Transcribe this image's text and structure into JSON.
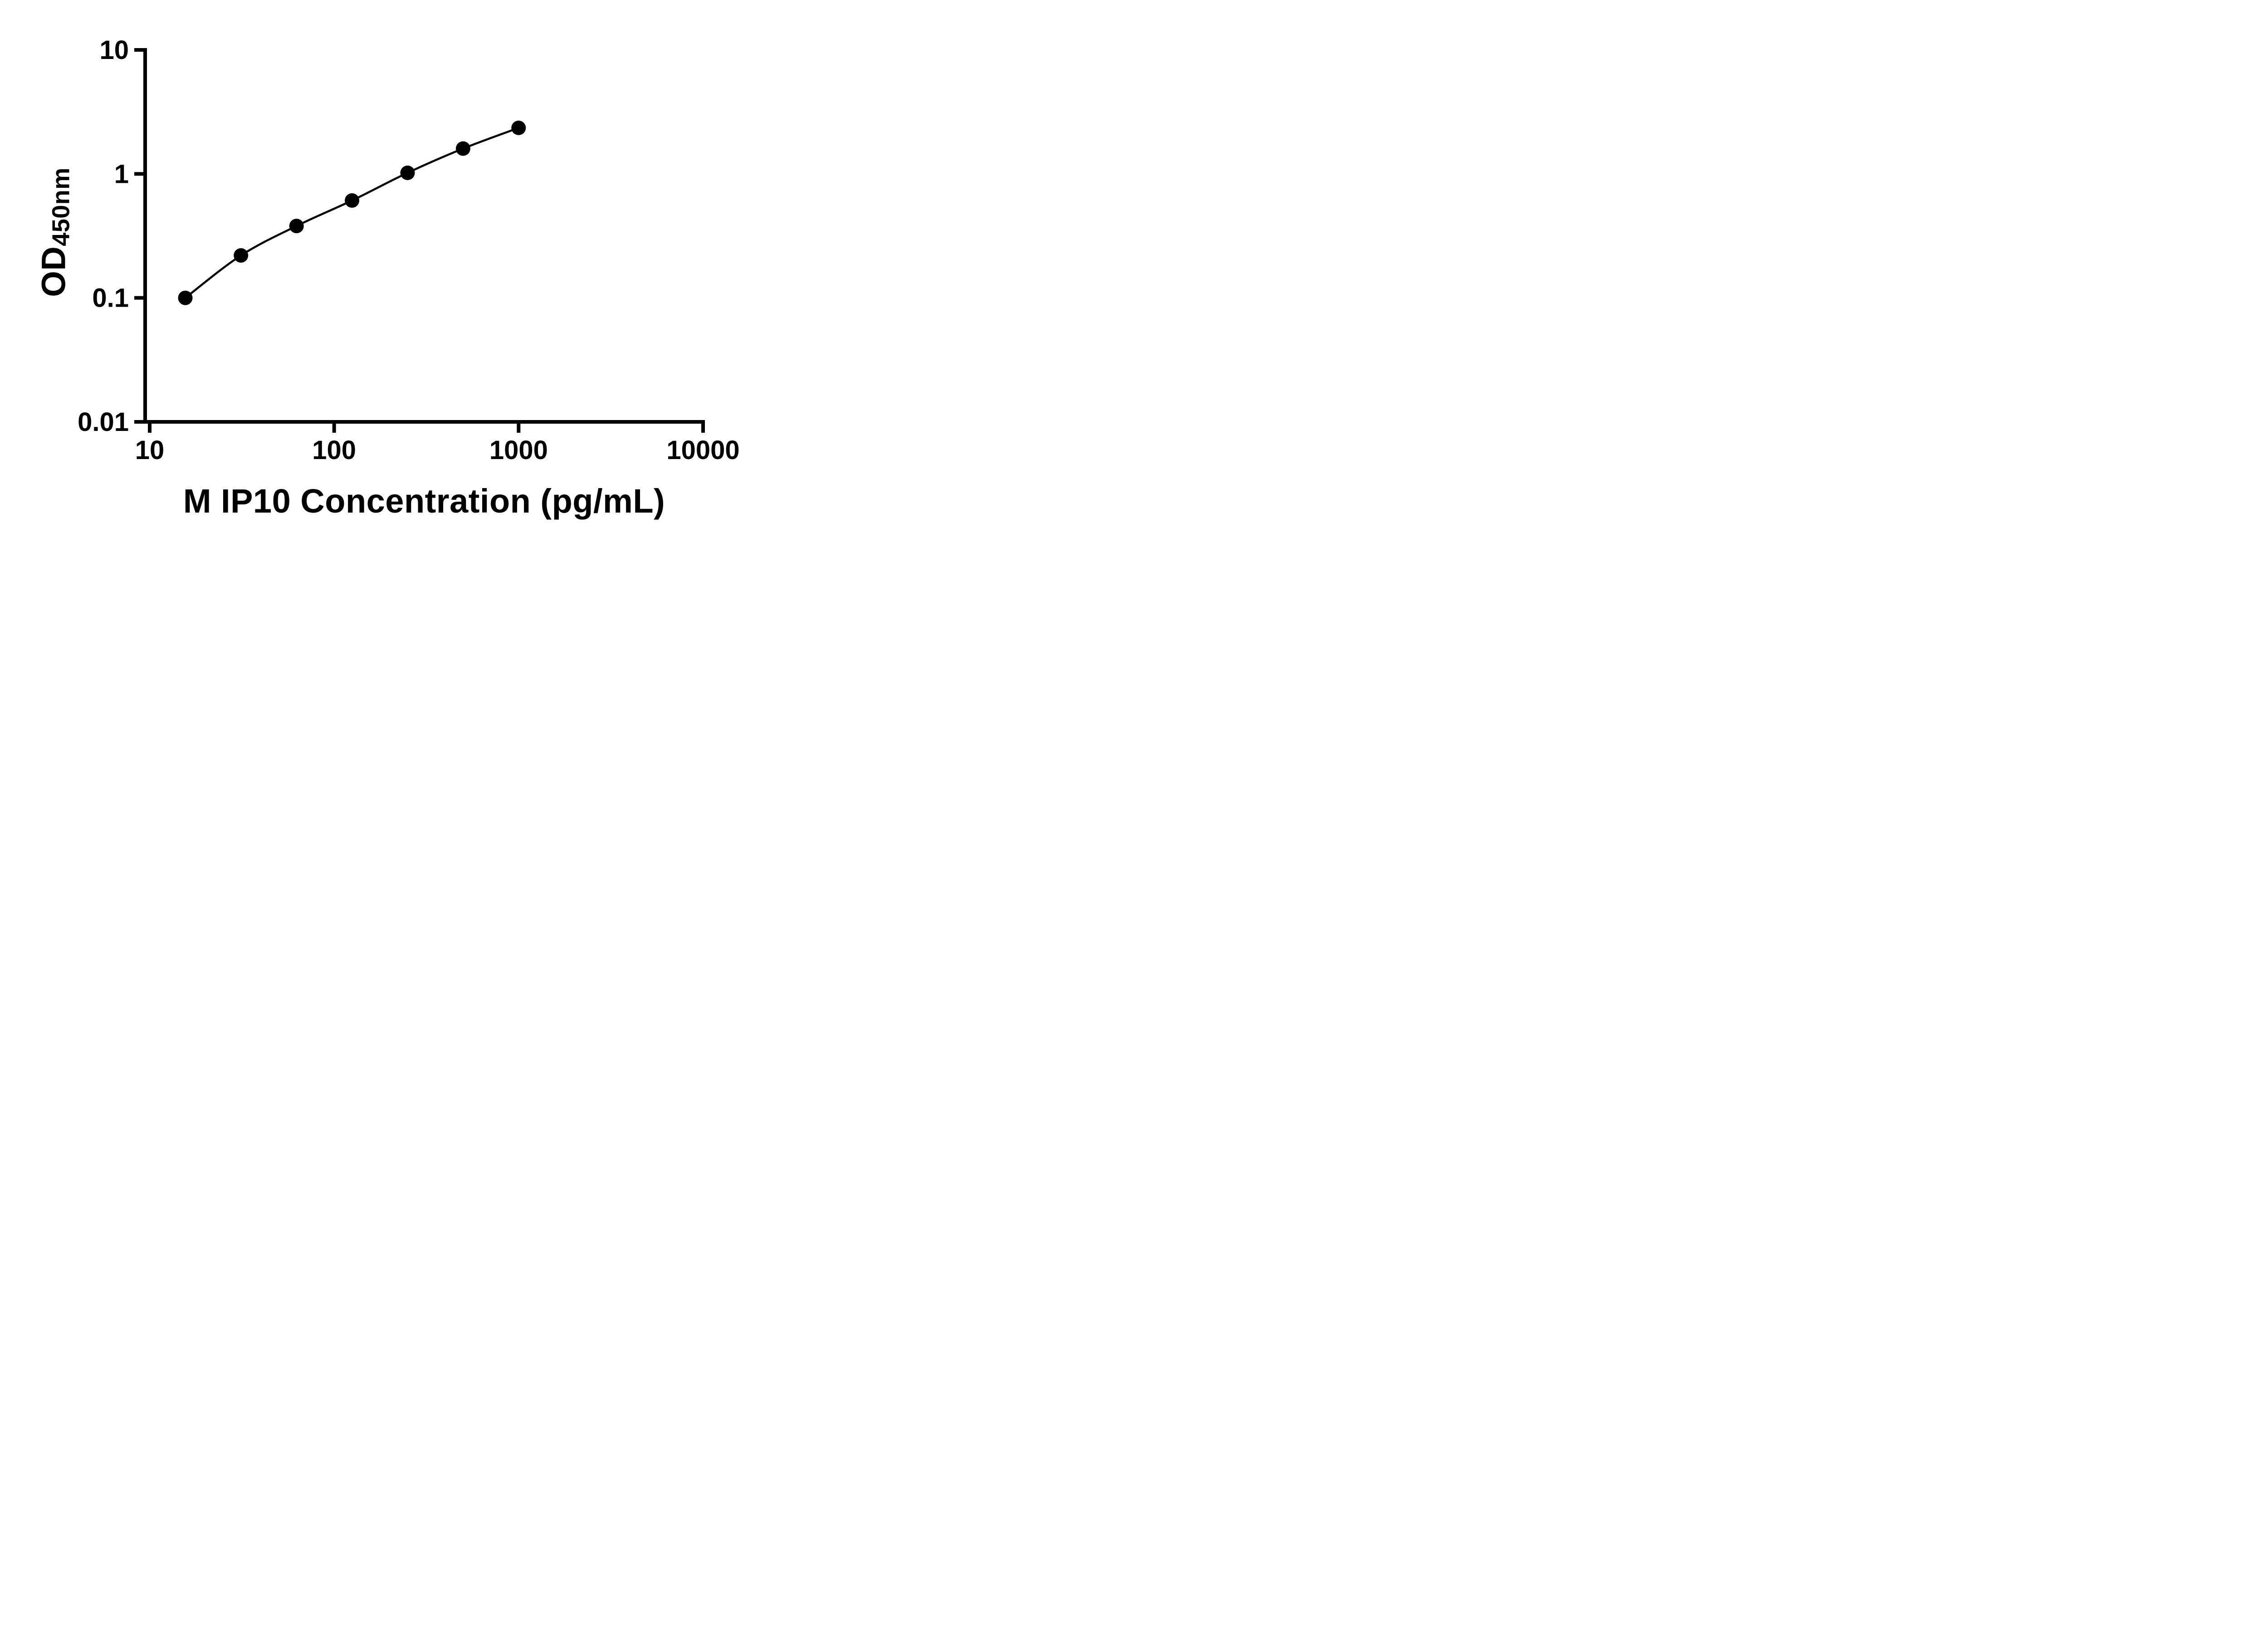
{
  "chart_data": {
    "type": "scatter",
    "title": "",
    "xlabel": "M IP10 Concentration (pg/mL)",
    "ylabel": "OD450nm",
    "ylabel_main": "OD",
    "ylabel_sub": "450nm",
    "x_scale": "log",
    "y_scale": "log",
    "xlim": [
      10,
      10000
    ],
    "ylim": [
      0.01,
      10
    ],
    "x_ticks": [
      10,
      100,
      1000,
      10000
    ],
    "x_tick_labels": [
      "10",
      "100",
      "1000",
      "10000"
    ],
    "y_ticks": [
      0.01,
      0.1,
      1,
      10
    ],
    "y_tick_labels": [
      "0.01",
      "0.1",
      "1",
      "10"
    ],
    "grid": false,
    "legend": "none",
    "series": [
      {
        "marker": "circle",
        "color": "#000000",
        "x": [
          15.6,
          31.25,
          62.5,
          125,
          250,
          500,
          1000
        ],
        "y": [
          0.1,
          0.22,
          0.38,
          0.61,
          1.02,
          1.6,
          2.35
        ]
      }
    ]
  },
  "colors": {
    "background": "#ffffff",
    "axis": "#000000",
    "curve": "#000000",
    "marker": "#000000"
  }
}
